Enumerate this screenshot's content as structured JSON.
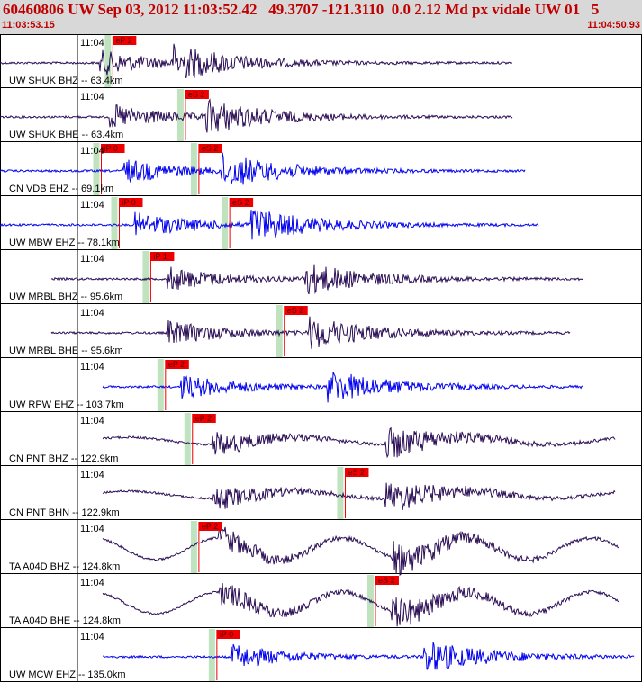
{
  "header": {
    "title": "60460806 UW Sep 03, 2012 11:03:52.42   49.3707 -121.3110  0.0 2.12 Md px vidale UW 01   5",
    "start_time": "11:03:53.15",
    "end_time": "11:04:50.93"
  },
  "colors": {
    "header_bg": "#d8d8d8",
    "header_text": "#c00000",
    "trace_dark": "#2a0d55",
    "trace_blue": "#0000ee",
    "pick_red": "#ee0000",
    "pick_window": "#bfe3bf",
    "grid": "#000000"
  },
  "panels": [
    {
      "label": "UW SHUK BHZ -- 63.4km",
      "time": "11:04",
      "color": "dark",
      "picks": [
        {
          "text": "eP 2",
          "pos": 0.173
        }
      ],
      "waves": [
        0.155,
        0.27
      ],
      "tail": 0.81
    },
    {
      "label": "UW SHUK BHE -- 63.4km",
      "time": "11:04",
      "color": "dark",
      "picks": [
        {
          "text": "eS 2",
          "pos": 0.286
        }
      ],
      "waves": [
        0.17,
        0.32
      ],
      "tail": 0.81
    },
    {
      "label": "CN VDB EHZ -- 69.1km",
      "time": "11:04",
      "color": "blue",
      "picks": [
        {
          "text": "iP 0",
          "pos": 0.155
        },
        {
          "text": "eS 2",
          "pos": 0.307
        }
      ],
      "waves": [
        0.19,
        0.345
      ],
      "tail": 0.83
    },
    {
      "label": "UW MBW EHZ -- 78.1km",
      "time": "11:04",
      "color": "blue",
      "picks": [
        {
          "text": "iP 0",
          "pos": 0.183
        },
        {
          "text": "eS 2",
          "pos": 0.355
        }
      ],
      "waves": [
        0.21,
        0.39
      ],
      "tail": 0.85
    },
    {
      "label": "UW MRBL BHZ -- 95.6km",
      "time": "11:04",
      "color": "dark",
      "picks": [
        {
          "text": "iP 1",
          "pos": 0.232
        }
      ],
      "waves": [
        0.26,
        0.47
      ],
      "tail": 0.92
    },
    {
      "label": "UW MRBL BHE -- 95.6km",
      "time": "11:04",
      "color": "dark",
      "picks": [
        {
          "text": "eS 2",
          "pos": 0.44
        }
      ],
      "waves": [
        0.26,
        0.48
      ],
      "tail": 0.9
    },
    {
      "label": "UW RPW EHZ -- 103.7km",
      "time": "11:04",
      "color": "blue",
      "picks": [
        {
          "text": "eP 2",
          "pos": 0.255
        }
      ],
      "waves": [
        0.28,
        0.51
      ],
      "tail": 0.92
    },
    {
      "label": "CN PNT BHZ -- 122.9km",
      "time": "11:04",
      "color": "dark",
      "picks": [
        {
          "text": "eP 2",
          "pos": 0.297
        }
      ],
      "waves": [
        0.33,
        0.6
      ],
      "tail": 0.97
    },
    {
      "label": "CN PNT BHN -- 122.9km",
      "time": "11:04",
      "color": "dark",
      "picks": [
        {
          "text": "eS 2",
          "pos": 0.535
        }
      ],
      "waves": [
        0.33,
        0.6
      ],
      "tail": 0.97
    },
    {
      "label": "TA A04D BHZ -- 124.8km",
      "time": "11:04",
      "color": "dark",
      "picks": [
        {
          "text": "eP 2",
          "pos": 0.307
        }
      ],
      "waves": [
        0.34,
        0.61
      ],
      "tail": 0.975
    },
    {
      "label": "TA A04D BHE -- 124.8km",
      "time": "11:04",
      "color": "dark",
      "picks": [
        {
          "text": "eS 2",
          "pos": 0.582
        }
      ],
      "waves": [
        0.34,
        0.61
      ],
      "tail": 0.975
    },
    {
      "label": "UW MCW EHZ -- 135.0km",
      "time": "11:04",
      "color": "blue",
      "picks": [
        {
          "text": "iP 0",
          "pos": 0.335
        }
      ],
      "waves": [
        0.36,
        0.66
      ],
      "tail": 1.0
    }
  ]
}
